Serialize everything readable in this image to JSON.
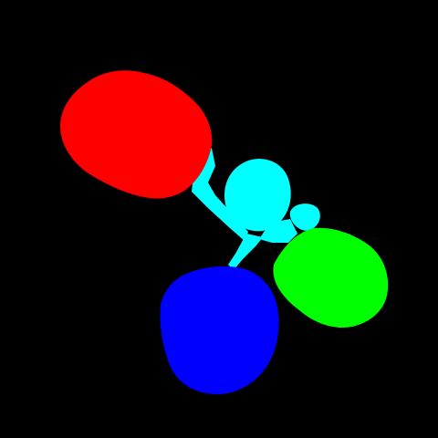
{
  "image": {
    "kind": "segmentation-mask",
    "background_color": "#000000",
    "regions": [
      {
        "id": "red-region",
        "color": "#ff0000"
      },
      {
        "id": "cyan-region",
        "color": "#00ffff"
      },
      {
        "id": "green-region",
        "color": "#00ff00"
      },
      {
        "id": "blue-region",
        "color": "#0000ff"
      }
    ]
  }
}
